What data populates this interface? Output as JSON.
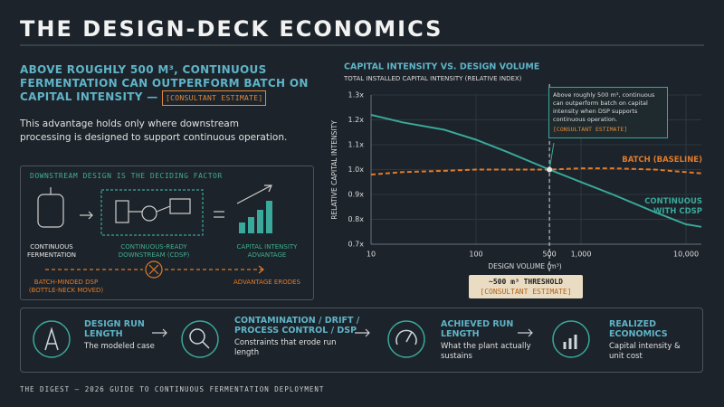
{
  "header": {
    "title": "THE DESIGN-DECK ECONOMICS"
  },
  "headline": {
    "text": "ABOVE ROUGHLY 500 M³, CONTINUOUS FERMENTATION CAN OUTPERFORM BATCH ON CAPITAL INTENSITY —",
    "tag": "[CONSULTANT ESTIMATE]"
  },
  "body": "This advantage holds only where downstream processing is designed to support continuous operation.",
  "panel": {
    "title": "DOWNSTREAM DESIGN IS THE DECIDING FACTOR",
    "items": [
      "CONTINUOUS FERMENTATION",
      "CONTINUOUS-READY DOWNSTREAM (CDSP)",
      "CAPITAL INTENSITY ADVANTAGE"
    ],
    "fail": "BATCH-MINDED DSP (BOTTLE-NECK MOVED)",
    "fail_result": "ADVANTAGE ERODES"
  },
  "chart_data": {
    "type": "line",
    "title": "CAPITAL INTENSITY VS. DESIGN VOLUME",
    "subtitle": "TOTAL INSTALLED CAPITAL INTENSITY (RELATIVE INDEX)",
    "x_label": "DESIGN VOLUME (m³)",
    "y_label": "RELATIVE CAPITAL INTENSITY",
    "x_scale": "log",
    "grid": true,
    "x": [
      10,
      20,
      50,
      100,
      200,
      500,
      1000,
      2000,
      5000,
      10000,
      14000
    ],
    "series": [
      {
        "name": "BATCH (BASELINE)",
        "color": "#e07b2a",
        "dashed": true,
        "values": [
          0.98,
          0.99,
          0.995,
          1.0,
          1.0,
          1.0,
          1.005,
          1.005,
          1.0,
          0.99,
          0.985
        ]
      },
      {
        "name": "CONTINUOUS WITH CDSP",
        "color": "#3aa89a",
        "dashed": false,
        "values": [
          1.22,
          1.19,
          1.16,
          1.12,
          1.07,
          1.0,
          0.95,
          0.9,
          0.83,
          0.78,
          0.77
        ]
      }
    ],
    "xlim": [
      10,
      14000
    ],
    "ylim": [
      0.7,
      1.3
    ],
    "xticks": [
      10,
      100,
      500,
      {
        "value": 1000,
        "label": "1,000"
      },
      {
        "value": 10000,
        "label": "10,000"
      }
    ],
    "yticks": [
      {
        "value": 0.7,
        "label": "0.7x"
      },
      {
        "value": 0.8,
        "label": "0.8x"
      },
      {
        "value": 0.9,
        "label": "0.9x"
      },
      {
        "value": 1.0,
        "label": "1.0x"
      },
      {
        "value": 1.1,
        "label": "1.1x"
      },
      {
        "value": 1.2,
        "label": "1.2x"
      },
      {
        "value": 1.3,
        "label": "1.3x"
      }
    ],
    "threshold": 500,
    "callout": {
      "text": "Above roughly 500 m³, continuous can outperform batch on capital intensity when DSP supports continuous operation.",
      "tag": "[CONSULTANT ESTIMATE]"
    },
    "threshold_label": {
      "text": "~500 m³ THRESHOLD",
      "tag": "[CONSULTANT ESTIMATE]"
    }
  },
  "steps": [
    {
      "title": "DESIGN RUN LENGTH",
      "text": "The modeled case"
    },
    {
      "title": "CONTAMINATION / DRIFT / PROCESS CONTROL / DSP",
      "text": "Constraints that erode run length"
    },
    {
      "title": "ACHIEVED RUN LENGTH",
      "text": "What the plant actually sustains"
    },
    {
      "title": "REALIZED ECONOMICS",
      "text": "Capital intensity & unit cost"
    }
  ],
  "footer": "THE DIGEST — 2026 GUIDE TO CONTINUOUS FERMENTATION DEPLOYMENT"
}
